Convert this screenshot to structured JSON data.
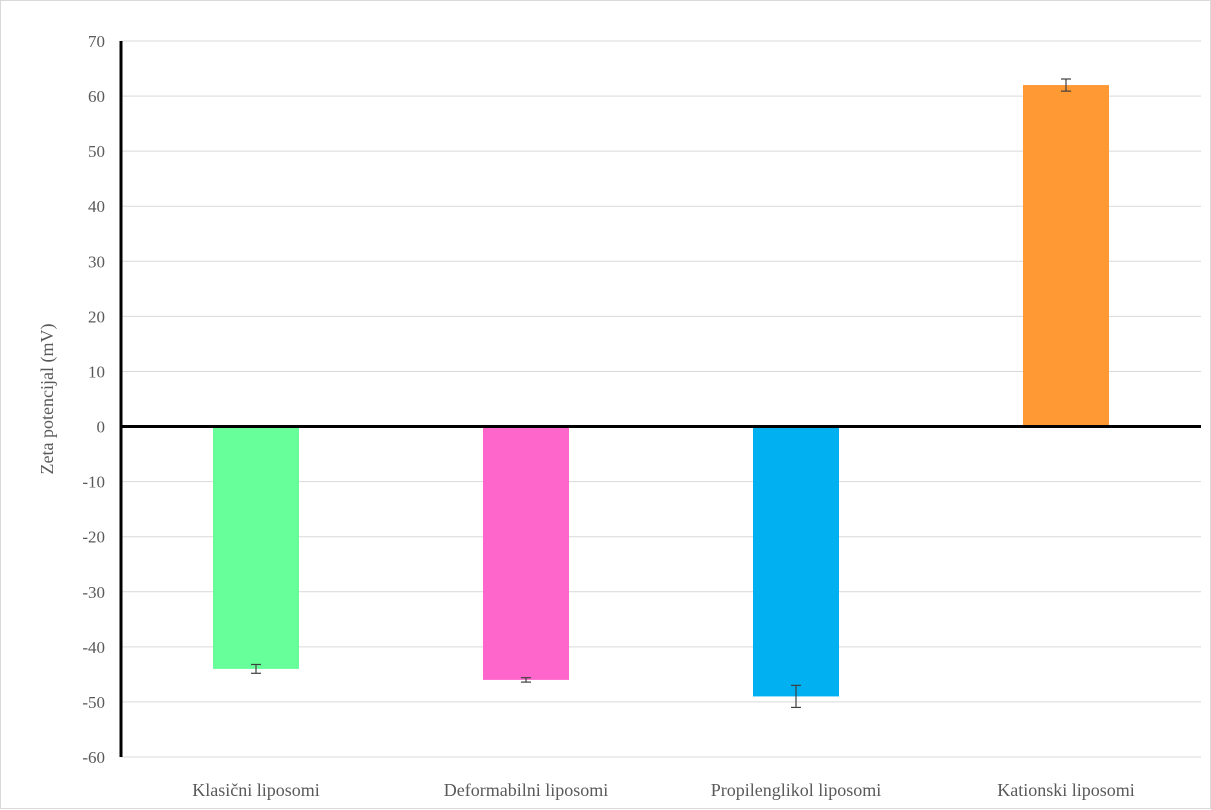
{
  "chart_data": {
    "type": "bar",
    "title": "",
    "xlabel": "",
    "ylabel": "Zeta potencijal (mV)",
    "ylim": [
      -60,
      70
    ],
    "yticks": [
      70,
      60,
      50,
      40,
      30,
      20,
      10,
      0,
      -10,
      -20,
      -30,
      -40,
      -50,
      -60
    ],
    "grid": true,
    "legend": "none",
    "categories": [
      "Klasični liposomi",
      "Deformabilni liposomi",
      "Propilenglikol liposomi",
      "Kationski liposomi"
    ],
    "values": [
      -44,
      -46,
      -49,
      62
    ],
    "errors": [
      0.8,
      0.4,
      2.0,
      1.1
    ],
    "colors": [
      "#66ff99",
      "#ff66cc",
      "#00b0f0",
      "#ff9933"
    ]
  }
}
